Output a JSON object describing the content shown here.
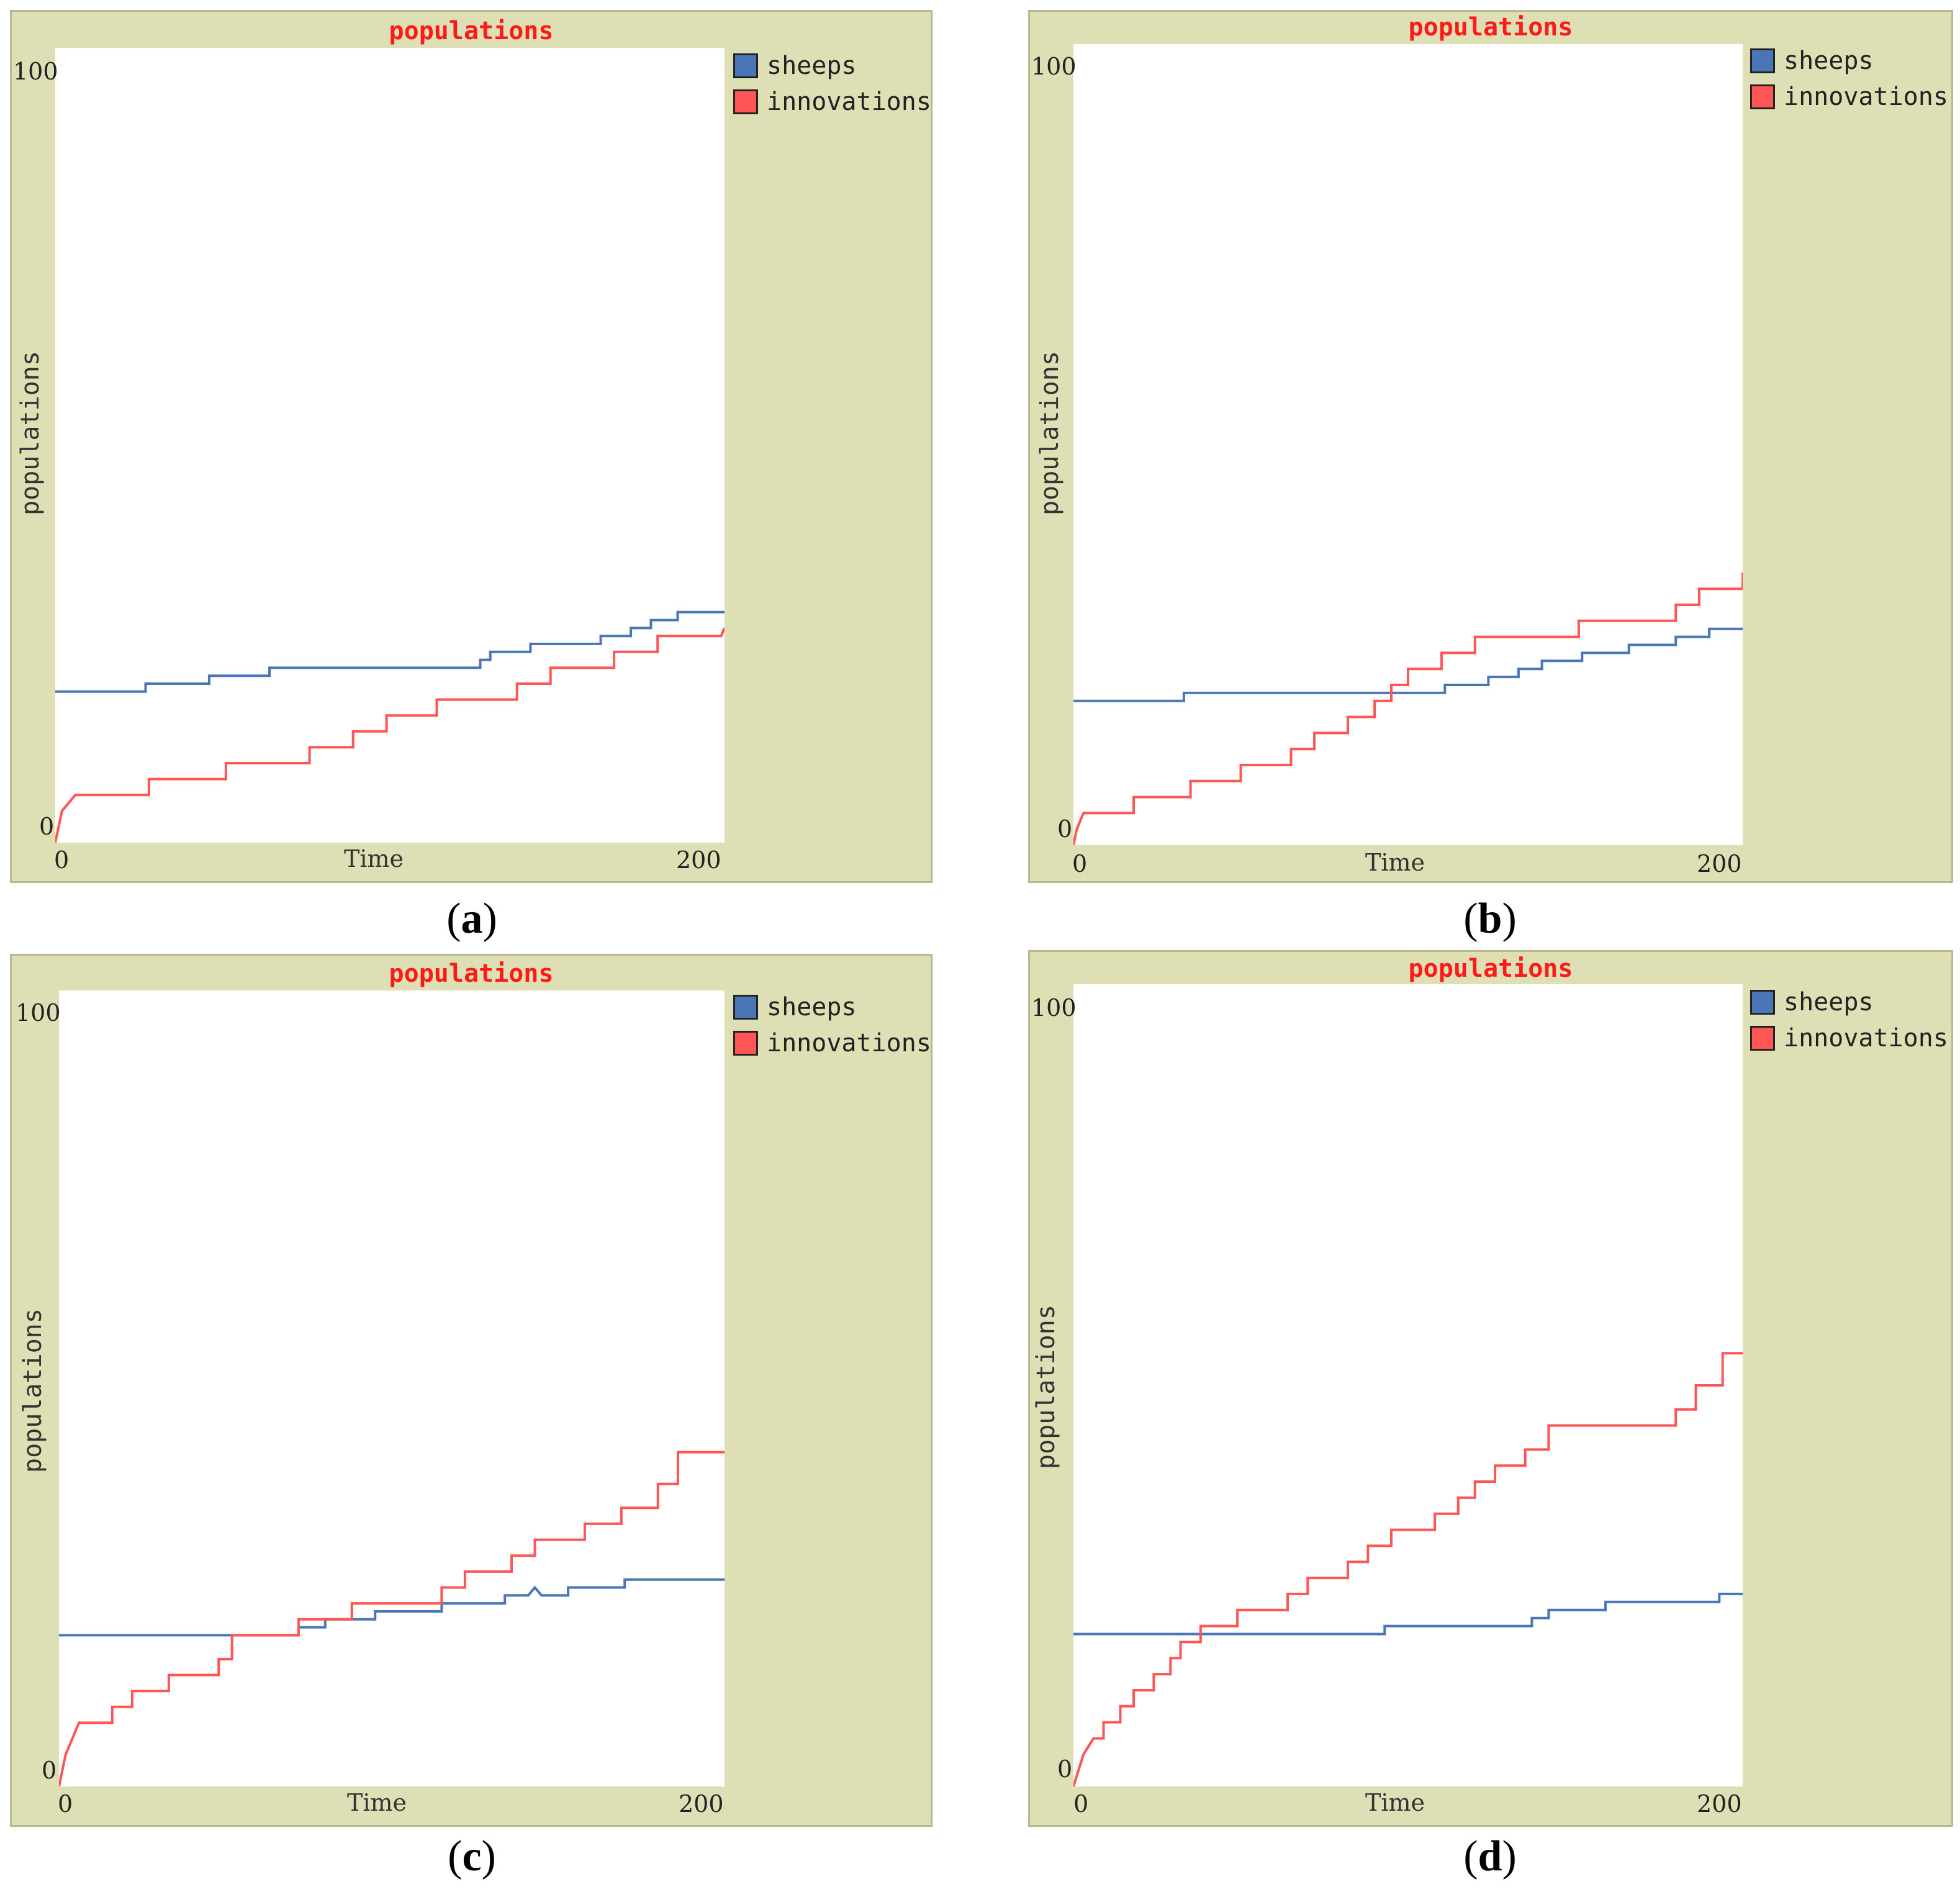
{
  "colors": {
    "sheeps": "#4a76b8",
    "innovations": "#ff5555",
    "title": "#ff1a1a"
  },
  "chart_data": [
    {
      "type": "line",
      "id": "a",
      "caption_letter": "a",
      "title": "populations",
      "xlabel": "Time",
      "ylabel": "populations",
      "xlim": [
        0,
        200
      ],
      "ylim": [
        0,
        100
      ],
      "x_ticks": [
        "0",
        "200"
      ],
      "y_ticks": [
        "0",
        "100"
      ],
      "legend": [
        "sheeps",
        "innovations"
      ],
      "series": [
        {
          "name": "sheeps",
          "color": "#4a76b8",
          "points": [
            [
              0,
              19
            ],
            [
              27,
              19
            ],
            [
              27,
              20
            ],
            [
              46,
              20
            ],
            [
              46,
              21
            ],
            [
              64,
              21
            ],
            [
              64,
              22
            ],
            [
              127,
              22
            ],
            [
              127,
              23
            ],
            [
              130,
              23
            ],
            [
              130,
              24
            ],
            [
              142,
              24
            ],
            [
              142,
              25
            ],
            [
              163,
              25
            ],
            [
              163,
              26
            ],
            [
              172,
              26
            ],
            [
              172,
              27
            ],
            [
              178,
              27
            ],
            [
              178,
              28
            ],
            [
              186,
              28
            ],
            [
              186,
              29
            ],
            [
              200,
              29
            ]
          ]
        },
        {
          "name": "innovations",
          "color": "#ff5555",
          "points": [
            [
              0,
              0
            ],
            [
              1,
              2
            ],
            [
              2,
              4
            ],
            [
              4,
              5
            ],
            [
              6,
              6
            ],
            [
              28,
              6
            ],
            [
              28,
              8
            ],
            [
              51,
              8
            ],
            [
              51,
              10
            ],
            [
              76,
              10
            ],
            [
              76,
              12
            ],
            [
              89,
              12
            ],
            [
              89,
              14
            ],
            [
              99,
              14
            ],
            [
              99,
              16
            ],
            [
              114,
              16
            ],
            [
              114,
              18
            ],
            [
              138,
              18
            ],
            [
              138,
              20
            ],
            [
              148,
              20
            ],
            [
              148,
              22
            ],
            [
              167,
              22
            ],
            [
              167,
              24
            ],
            [
              180,
              24
            ],
            [
              180,
              26
            ],
            [
              199,
              26
            ],
            [
              200,
              27
            ]
          ]
        }
      ]
    },
    {
      "type": "line",
      "id": "b",
      "caption_letter": "b",
      "title": "populations",
      "xlabel": "Time",
      "ylabel": "populations",
      "xlim": [
        0,
        200
      ],
      "ylim": [
        0,
        100
      ],
      "x_ticks": [
        "0",
        "200"
      ],
      "y_ticks": [
        "0",
        "100"
      ],
      "legend": [
        "sheeps",
        "innovations"
      ],
      "series": [
        {
          "name": "sheeps",
          "color": "#4a76b8",
          "points": [
            [
              0,
              18
            ],
            [
              33,
              18
            ],
            [
              33,
              19
            ],
            [
              111,
              19
            ],
            [
              111,
              20
            ],
            [
              124,
              20
            ],
            [
              124,
              21
            ],
            [
              133,
              21
            ],
            [
              133,
              22
            ],
            [
              140,
              22
            ],
            [
              140,
              23
            ],
            [
              152,
              23
            ],
            [
              152,
              24
            ],
            [
              166,
              24
            ],
            [
              166,
              25
            ],
            [
              180,
              25
            ],
            [
              180,
              26
            ],
            [
              190,
              26
            ],
            [
              190,
              27
            ],
            [
              200,
              27
            ]
          ]
        },
        {
          "name": "innovations",
          "color": "#ff5555",
          "points": [
            [
              0,
              0
            ],
            [
              1,
              2
            ],
            [
              3,
              4
            ],
            [
              18,
              4
            ],
            [
              18,
              6
            ],
            [
              35,
              6
            ],
            [
              35,
              8
            ],
            [
              50,
              8
            ],
            [
              50,
              10
            ],
            [
              65,
              10
            ],
            [
              65,
              12
            ],
            [
              72,
              12
            ],
            [
              72,
              14
            ],
            [
              82,
              14
            ],
            [
              82,
              16
            ],
            [
              90,
              16
            ],
            [
              90,
              18
            ],
            [
              95,
              18
            ],
            [
              95,
              20
            ],
            [
              100,
              20
            ],
            [
              100,
              22
            ],
            [
              110,
              22
            ],
            [
              110,
              24
            ],
            [
              120,
              24
            ],
            [
              120,
              26
            ],
            [
              151,
              26
            ],
            [
              151,
              28
            ],
            [
              180,
              28
            ],
            [
              180,
              30
            ],
            [
              187,
              30
            ],
            [
              187,
              32
            ],
            [
              200,
              32
            ],
            [
              200,
              34
            ]
          ]
        }
      ]
    },
    {
      "type": "line",
      "id": "c",
      "caption_letter": "c",
      "title": "populations",
      "xlabel": "Time",
      "ylabel": "populations",
      "xlim": [
        0,
        200
      ],
      "ylim": [
        0,
        100
      ],
      "x_ticks": [
        "0",
        "200"
      ],
      "y_ticks": [
        "0",
        "100"
      ],
      "legend": [
        "sheeps",
        "innovations"
      ],
      "series": [
        {
          "name": "sheeps",
          "color": "#4a76b8",
          "points": [
            [
              0,
              19
            ],
            [
              72,
              19
            ],
            [
              72,
              20
            ],
            [
              80,
              20
            ],
            [
              80,
              21
            ],
            [
              95,
              21
            ],
            [
              95,
              22
            ],
            [
              115,
              22
            ],
            [
              115,
              23
            ],
            [
              134,
              23
            ],
            [
              134,
              24
            ],
            [
              141,
              24
            ],
            [
              143,
              25
            ],
            [
              145,
              24
            ],
            [
              153,
              24
            ],
            [
              153,
              25
            ],
            [
              170,
              25
            ],
            [
              170,
              26
            ],
            [
              200,
              26
            ]
          ]
        },
        {
          "name": "innovations",
          "color": "#ff5555",
          "points": [
            [
              0,
              0
            ],
            [
              2,
              4
            ],
            [
              4,
              6
            ],
            [
              6,
              8
            ],
            [
              16,
              8
            ],
            [
              16,
              10
            ],
            [
              22,
              10
            ],
            [
              22,
              12
            ],
            [
              33,
              12
            ],
            [
              33,
              14
            ],
            [
              48,
              14
            ],
            [
              48,
              16
            ],
            [
              52,
              16
            ],
            [
              52,
              19
            ],
            [
              72,
              19
            ],
            [
              72,
              21
            ],
            [
              88,
              21
            ],
            [
              88,
              23
            ],
            [
              115,
              23
            ],
            [
              115,
              25
            ],
            [
              122,
              25
            ],
            [
              122,
              27
            ],
            [
              136,
              27
            ],
            [
              136,
              29
            ],
            [
              143,
              29
            ],
            [
              143,
              31
            ],
            [
              158,
              31
            ],
            [
              158,
              33
            ],
            [
              169,
              33
            ],
            [
              169,
              35
            ],
            [
              180,
              35
            ],
            [
              180,
              38
            ],
            [
              186,
              38
            ],
            [
              186,
              42
            ],
            [
              200,
              42
            ]
          ]
        }
      ]
    },
    {
      "type": "line",
      "id": "d",
      "caption_letter": "d",
      "title": "populations",
      "xlabel": "Time",
      "ylabel": "populations",
      "xlim": [
        0,
        200
      ],
      "ylim": [
        0,
        100
      ],
      "x_ticks": [
        "0",
        "200"
      ],
      "y_ticks": [
        "0",
        "100"
      ],
      "legend": [
        "sheeps",
        "innovations"
      ],
      "series": [
        {
          "name": "sheeps",
          "color": "#4a76b8",
          "points": [
            [
              0,
              19
            ],
            [
              93,
              19
            ],
            [
              93,
              20
            ],
            [
              137,
              20
            ],
            [
              137,
              21
            ],
            [
              142,
              21
            ],
            [
              142,
              22
            ],
            [
              159,
              22
            ],
            [
              159,
              23
            ],
            [
              193,
              23
            ],
            [
              193,
              24
            ],
            [
              200,
              24
            ]
          ]
        },
        {
          "name": "innovations",
          "color": "#ff5555",
          "points": [
            [
              0,
              0
            ],
            [
              3,
              4
            ],
            [
              6,
              6
            ],
            [
              9,
              6
            ],
            [
              9,
              8
            ],
            [
              14,
              8
            ],
            [
              14,
              10
            ],
            [
              18,
              10
            ],
            [
              18,
              12
            ],
            [
              24,
              12
            ],
            [
              24,
              14
            ],
            [
              29,
              14
            ],
            [
              29,
              16
            ],
            [
              32,
              16
            ],
            [
              32,
              18
            ],
            [
              38,
              18
            ],
            [
              38,
              20
            ],
            [
              49,
              20
            ],
            [
              49,
              22
            ],
            [
              64,
              22
            ],
            [
              64,
              24
            ],
            [
              70,
              24
            ],
            [
              70,
              26
            ],
            [
              82,
              26
            ],
            [
              82,
              28
            ],
            [
              88,
              28
            ],
            [
              88,
              30
            ],
            [
              95,
              30
            ],
            [
              95,
              32
            ],
            [
              108,
              32
            ],
            [
              108,
              34
            ],
            [
              115,
              34
            ],
            [
              115,
              36
            ],
            [
              120,
              36
            ],
            [
              120,
              38
            ],
            [
              126,
              38
            ],
            [
              126,
              40
            ],
            [
              135,
              40
            ],
            [
              135,
              42
            ],
            [
              142,
              42
            ],
            [
              142,
              45
            ],
            [
              180,
              45
            ],
            [
              180,
              47
            ],
            [
              186,
              47
            ],
            [
              186,
              50
            ],
            [
              194,
              50
            ],
            [
              194,
              54
            ],
            [
              200,
              54
            ]
          ]
        }
      ]
    }
  ]
}
